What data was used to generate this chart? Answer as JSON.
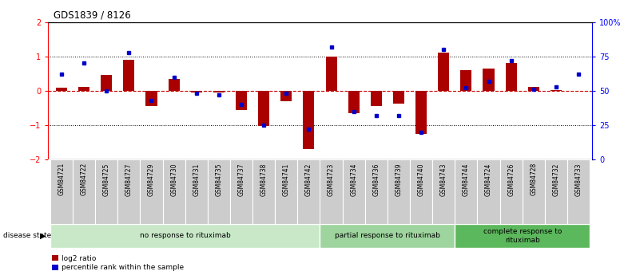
{
  "title": "GDS1839 / 8126",
  "samples": [
    "GSM84721",
    "GSM84722",
    "GSM84725",
    "GSM84727",
    "GSM84729",
    "GSM84730",
    "GSM84731",
    "GSM84735",
    "GSM84737",
    "GSM84738",
    "GSM84741",
    "GSM84742",
    "GSM84723",
    "GSM84734",
    "GSM84736",
    "GSM84739",
    "GSM84740",
    "GSM84743",
    "GSM84744",
    "GSM84724",
    "GSM84726",
    "GSM84728",
    "GSM84732",
    "GSM84733"
  ],
  "log2_ratio": [
    0.1,
    0.12,
    0.45,
    0.9,
    -0.45,
    0.35,
    -0.05,
    -0.05,
    -0.55,
    -1.02,
    -0.3,
    -1.7,
    1.0,
    -0.65,
    -0.45,
    -0.38,
    -1.25,
    1.1,
    0.6,
    0.65,
    0.8,
    0.12,
    0.02,
    0.0
  ],
  "percentile": [
    62,
    70,
    50,
    78,
    43,
    60,
    48,
    47,
    40,
    25,
    48,
    22,
    82,
    35,
    32,
    32,
    20,
    80,
    52,
    57,
    72,
    51,
    53,
    62
  ],
  "groups": [
    {
      "label": "no response to rituximab",
      "start": 0,
      "end": 12,
      "color": "#c8e8c8"
    },
    {
      "label": "partial response to rituximab",
      "start": 12,
      "end": 18,
      "color": "#9ed49e"
    },
    {
      "label": "complete response to\nrituximab",
      "start": 18,
      "end": 24,
      "color": "#5cb85c"
    }
  ],
  "bar_color_red": "#aa0000",
  "bar_color_blue": "#0000cc",
  "ylim_left": [
    -2,
    2
  ],
  "ylim_right": [
    0,
    100
  ],
  "yticks_left": [
    -2,
    -1,
    0,
    1,
    2
  ],
  "yticks_right": [
    0,
    25,
    50,
    75,
    100
  ],
  "ytick_labels_right": [
    "0",
    "25",
    "50",
    "75",
    "100%"
  ],
  "hline_color": "#cc0000",
  "dotted_color": "#000000",
  "label_bg": "#cccccc",
  "bg_color": "#ffffff"
}
